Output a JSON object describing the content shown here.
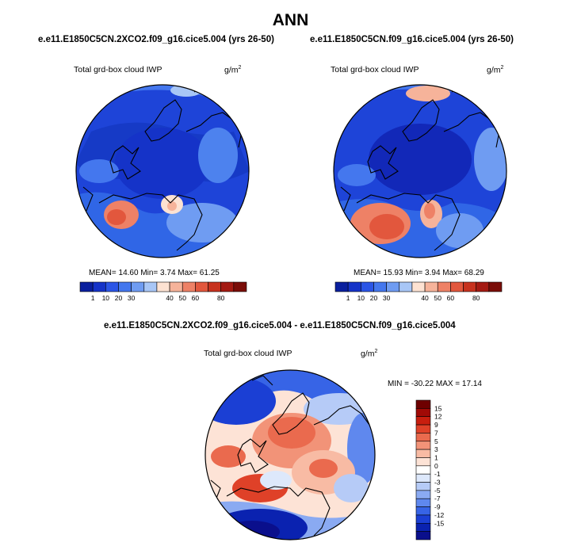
{
  "title": "ANN",
  "panels": [
    {
      "case": "e.e11.E1850C5CN.2XCO2.f09_g16.cice5.004 (yrs 26-50)",
      "variable": "Total grd-box cloud IWP",
      "units_base": "g/m",
      "units_exp": "2",
      "stats": "MEAN=  14.60  Min=   3.74  Max=  61.25",
      "colorbar_labels": [
        "1",
        "10",
        "20",
        "30",
        "40",
        "50",
        "60",
        "80"
      ]
    },
    {
      "case": "e.e11.E1850C5CN.f09_g16.cice5.004 (yrs 26-50)",
      "variable": "Total grd-box cloud IWP",
      "units_base": "g/m",
      "units_exp": "2",
      "stats": "MEAN=  15.93  Min=   3.94  Max=  68.29",
      "colorbar_labels": [
        "1",
        "10",
        "20",
        "30",
        "40",
        "50",
        "60",
        "80"
      ]
    }
  ],
  "diff_panel": {
    "case": "e.e11.E1850C5CN.2XCO2.f09_g16.cice5.004 - e.e11.E1850C5CN.f09_g16.cice5.004",
    "variable": "Total grd-box cloud IWP",
    "units_base": "g/m",
    "units_exp": "2",
    "stats": "MIN = -30.22 MAX =  17.14",
    "colorbar_labels": [
      "15",
      "12",
      "9",
      "7",
      "5",
      "3",
      "1",
      "0",
      "-1",
      "-3",
      "-5",
      "-7",
      "-9",
      "-12",
      "-15"
    ]
  },
  "colors": {
    "abs_scale": [
      "#0a1f9e",
      "#1533c8",
      "#2b55e6",
      "#4477ee",
      "#6f9cf2",
      "#a8c6f6",
      "#fde2d2",
      "#f6b39a",
      "#ee8166",
      "#e2573d",
      "#c7321e",
      "#a41a12",
      "#7a0d08"
    ],
    "diff_scale": [
      "#0a0f8c",
      "#0a22b0",
      "#1b3fd4",
      "#3764e6",
      "#5f88ee",
      "#8aaaf2",
      "#b6cbf7",
      "#dde8fb",
      "#ffffff",
      "#fde3d6",
      "#f8bba4",
      "#f29378",
      "#ea6a4e",
      "#df4128",
      "#c81e0e",
      "#a10a06",
      "#6e0000"
    ]
  }
}
